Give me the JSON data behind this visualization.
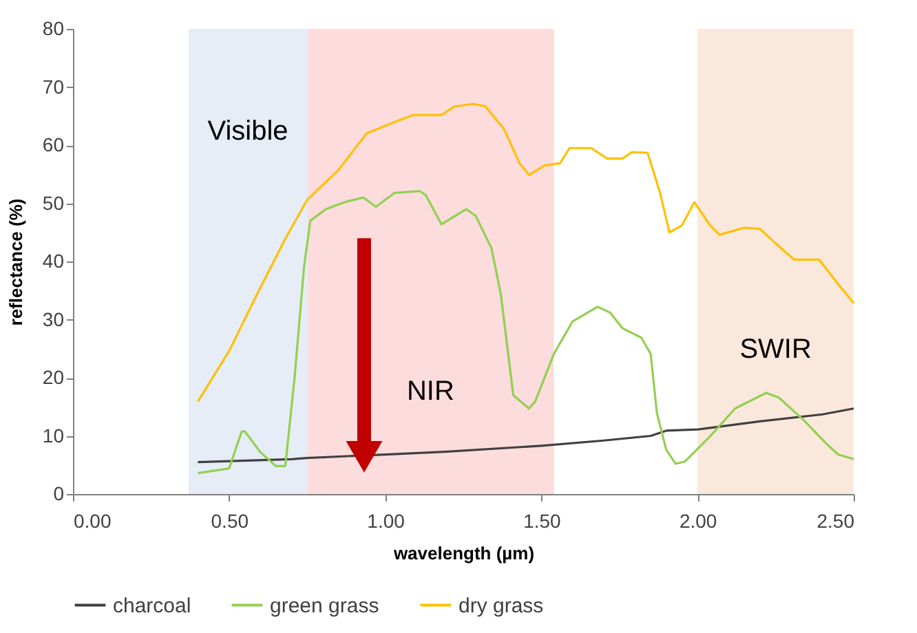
{
  "chart_data": {
    "type": "line",
    "xlabel": "wavelength (µm)",
    "ylabel": "reflectance (%)",
    "xlim": [
      0,
      2.5
    ],
    "ylim": [
      0,
      80
    ],
    "xticks": [
      {
        "value": 0,
        "label": "0.00"
      },
      {
        "value": 0.5,
        "label": "0.50"
      },
      {
        "value": 1,
        "label": "1.00"
      },
      {
        "value": 1.5,
        "label": "1.50"
      },
      {
        "value": 2,
        "label": "2.00"
      },
      {
        "value": 2.5,
        "label": "2.50"
      }
    ],
    "yticks": [
      0,
      10,
      20,
      30,
      40,
      50,
      60,
      70,
      80
    ],
    "grid": false,
    "legend": "bottom",
    "marker": "none",
    "line_style": "solid",
    "bands": [
      {
        "axis": "x",
        "from": 0.37,
        "to": 0.75,
        "label": "Visible",
        "color": "#e6edf6"
      },
      {
        "axis": "x",
        "from": 0.75,
        "to": 1.54,
        "label": "NIR",
        "color": "#fcdcdc"
      },
      {
        "axis": "x",
        "from": 2.0,
        "to": 2.5,
        "label": "SWIR",
        "color": "#fbe8dc"
      }
    ],
    "series": [
      {
        "name": "charcoal",
        "color": "#404040",
        "x": [
          0.4,
          0.7,
          0.75,
          1.0,
          1.2,
          1.5,
          1.7,
          1.85,
          1.9,
          2.0,
          2.2,
          2.4,
          2.5
        ],
        "values": [
          5.5,
          6.0,
          6.2,
          6.8,
          7.3,
          8.3,
          9.2,
          10.0,
          10.9,
          11.1,
          12.5,
          13.7,
          14.7
        ]
      },
      {
        "name": "green grass",
        "color": "#92d050",
        "x": [
          0.4,
          0.5,
          0.54,
          0.55,
          0.6,
          0.65,
          0.68,
          0.71,
          0.74,
          0.76,
          0.81,
          0.87,
          0.93,
          0.97,
          1.03,
          1.11,
          1.13,
          1.18,
          1.26,
          1.29,
          1.34,
          1.37,
          1.41,
          1.46,
          1.48,
          1.54,
          1.6,
          1.68,
          1.72,
          1.76,
          1.82,
          1.85,
          1.87,
          1.9,
          1.93,
          1.96,
          2.04,
          2.12,
          2.22,
          2.26,
          2.34,
          2.41,
          2.45,
          2.5
        ],
        "values": [
          3.6,
          4.4,
          10.7,
          10.8,
          7.2,
          4.8,
          4.8,
          20.2,
          39.1,
          47.0,
          49.0,
          50.2,
          51.0,
          49.4,
          51.8,
          52.1,
          51.4,
          46.4,
          49.0,
          47.8,
          42.3,
          34.4,
          17.0,
          14.7,
          15.9,
          24.1,
          29.7,
          32.2,
          31.2,
          28.5,
          26.9,
          24.1,
          13.9,
          7.6,
          5.2,
          5.6,
          9.9,
          14.7,
          17.4,
          16.6,
          12.7,
          8.8,
          6.8,
          6.0
        ]
      },
      {
        "name": "dry grass",
        "color": "#ffc000",
        "x": [
          0.4,
          0.5,
          0.59,
          0.68,
          0.75,
          0.85,
          0.94,
          1.03,
          1.09,
          1.18,
          1.22,
          1.28,
          1.32,
          1.38,
          1.43,
          1.46,
          1.51,
          1.56,
          1.59,
          1.66,
          1.71,
          1.76,
          1.79,
          1.84,
          1.88,
          1.91,
          1.95,
          1.99,
          2.04,
          2.07,
          2.15,
          2.2,
          2.25,
          2.31,
          2.39,
          2.44,
          2.5
        ],
        "values": [
          15.9,
          24.6,
          34.4,
          43.9,
          50.6,
          55.7,
          62.0,
          64.0,
          65.2,
          65.2,
          66.6,
          67.1,
          66.7,
          62.8,
          56.9,
          54.9,
          56.5,
          56.9,
          59.5,
          59.5,
          57.7,
          57.7,
          58.8,
          58.7,
          51.8,
          45.0,
          46.2,
          50.2,
          46.2,
          44.6,
          45.8,
          45.6,
          43.1,
          40.3,
          40.3,
          36.8,
          32.8
        ]
      }
    ]
  }
}
